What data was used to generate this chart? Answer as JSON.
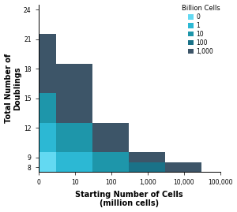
{
  "xlabel": "Starting Number of Cells\n(million cells)",
  "ylabel": "Total Number of\nDoublings",
  "legend_title": "Billion Cells",
  "legend_labels": [
    "0",
    "1",
    "10",
    "100",
    "1,000"
  ],
  "legend_colors": [
    "#63d9f2",
    "#2cb8d4",
    "#1e96aa",
    "#1a7288",
    "#3d5568"
  ],
  "x_edges": [
    1,
    3,
    30,
    300,
    3000,
    30000,
    100000
  ],
  "y_edges": [
    7.5,
    8.5,
    9.5,
    12.5,
    15.5,
    18.5,
    21.5,
    24.5
  ],
  "grid_data": [
    {
      "xi": 0,
      "yi": 0,
      "color": "#63d9f2"
    },
    {
      "xi": 1,
      "yi": 0,
      "color": "#2cb8d4"
    },
    {
      "xi": 2,
      "yi": 0,
      "color": "#1e96aa"
    },
    {
      "xi": 3,
      "yi": 0,
      "color": "#1a7288"
    },
    {
      "xi": 4,
      "yi": 0,
      "color": "#3d5568"
    },
    {
      "xi": 0,
      "yi": 1,
      "color": "#63d9f2"
    },
    {
      "xi": 1,
      "yi": 1,
      "color": "#2cb8d4"
    },
    {
      "xi": 2,
      "yi": 1,
      "color": "#1e96aa"
    },
    {
      "xi": 3,
      "yi": 1,
      "color": "#3d5568"
    },
    {
      "xi": 0,
      "yi": 2,
      "color": "#2cb8d4"
    },
    {
      "xi": 1,
      "yi": 2,
      "color": "#1e96aa"
    },
    {
      "xi": 2,
      "yi": 2,
      "color": "#3d5568"
    },
    {
      "xi": 0,
      "yi": 3,
      "color": "#1e96aa"
    },
    {
      "xi": 1,
      "yi": 3,
      "color": "#3d5568"
    },
    {
      "xi": 0,
      "yi": 4,
      "color": "#3d5568"
    },
    {
      "xi": 1,
      "yi": 4,
      "color": "#3d5568"
    },
    {
      "xi": 0,
      "yi": 5,
      "color": "#3d5568"
    }
  ],
  "x_ticks": [
    1,
    10,
    100,
    1000,
    10000,
    100000
  ],
  "x_tick_labels": [
    "0",
    "10",
    "100",
    "1,000",
    "10,000",
    "100,000"
  ],
  "y_ticks": [
    8,
    9,
    12,
    15,
    18,
    21,
    24
  ],
  "xlim": [
    1,
    100000
  ],
  "ylim": [
    7.5,
    24.5
  ]
}
